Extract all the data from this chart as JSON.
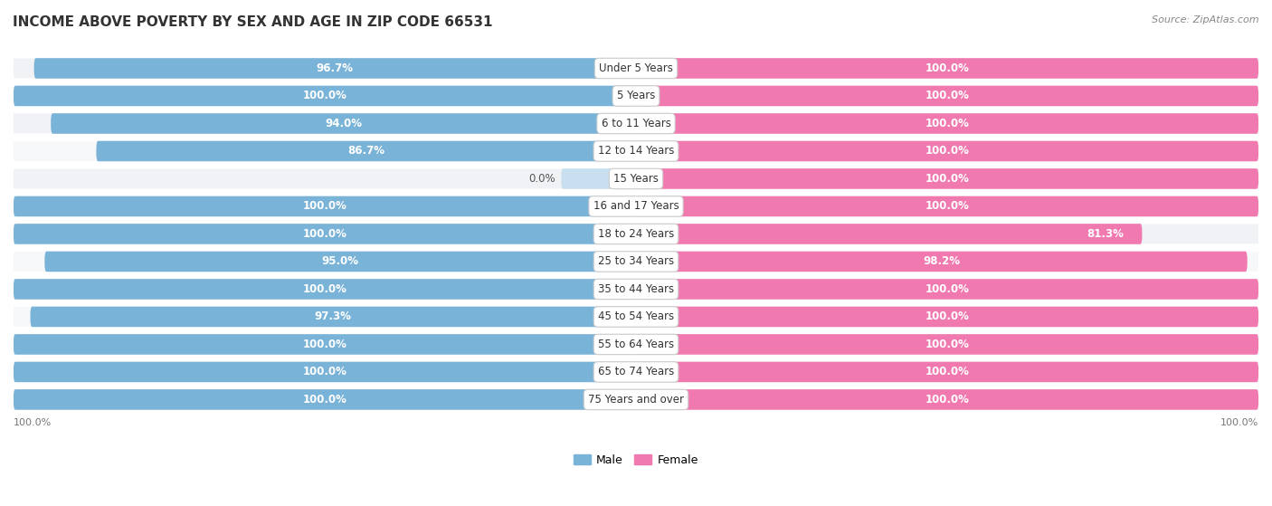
{
  "title": "INCOME ABOVE POVERTY BY SEX AND AGE IN ZIP CODE 66531",
  "source": "Source: ZipAtlas.com",
  "categories": [
    "Under 5 Years",
    "5 Years",
    "6 to 11 Years",
    "12 to 14 Years",
    "15 Years",
    "16 and 17 Years",
    "18 to 24 Years",
    "25 to 34 Years",
    "35 to 44 Years",
    "45 to 54 Years",
    "55 to 64 Years",
    "65 to 74 Years",
    "75 Years and over"
  ],
  "male_values": [
    96.7,
    100.0,
    94.0,
    86.7,
    0.0,
    100.0,
    100.0,
    95.0,
    100.0,
    97.3,
    100.0,
    100.0,
    100.0
  ],
  "female_values": [
    100.0,
    100.0,
    100.0,
    100.0,
    100.0,
    100.0,
    81.3,
    98.2,
    100.0,
    100.0,
    100.0,
    100.0,
    100.0
  ],
  "male_color": "#7ab3d8",
  "female_color": "#f07ab0",
  "male_color_light": "#c8dff0",
  "female_color_light": "#f9c8dc",
  "row_bg_even": "#f0f2f5",
  "row_bg_odd": "#f7f8fa",
  "title_fontsize": 11,
  "label_fontsize": 8.5,
  "cat_fontsize": 8.5,
  "source_fontsize": 8,
  "legend_fontsize": 9
}
